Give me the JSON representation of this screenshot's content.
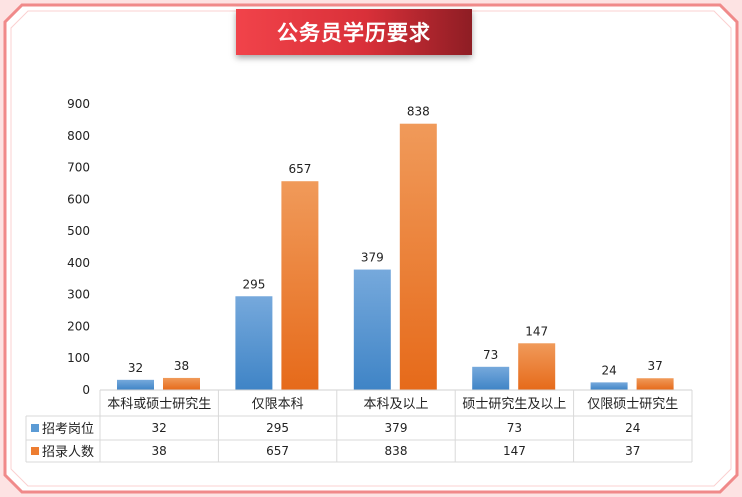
{
  "title": "公务员学历要求",
  "colors": {
    "series1": "#5b9bd5",
    "series2": "#ed7d31",
    "accent": "#e53a40"
  },
  "chart_data": {
    "type": "bar",
    "categories": [
      "本科或硕士研究生",
      "仅限本科",
      "本科及以上",
      "硕士研究生及以上",
      "仅限硕士研究生"
    ],
    "series": [
      {
        "name": "招考岗位",
        "values": [
          32,
          295,
          379,
          73,
          24
        ]
      },
      {
        "name": "招录人数",
        "values": [
          38,
          657,
          838,
          147,
          37
        ]
      }
    ],
    "ylim": [
      0,
      900
    ],
    "yticks": [
      0,
      100,
      200,
      300,
      400,
      500,
      600,
      700,
      800,
      900
    ],
    "grid": false,
    "legend": "data-table-left"
  }
}
